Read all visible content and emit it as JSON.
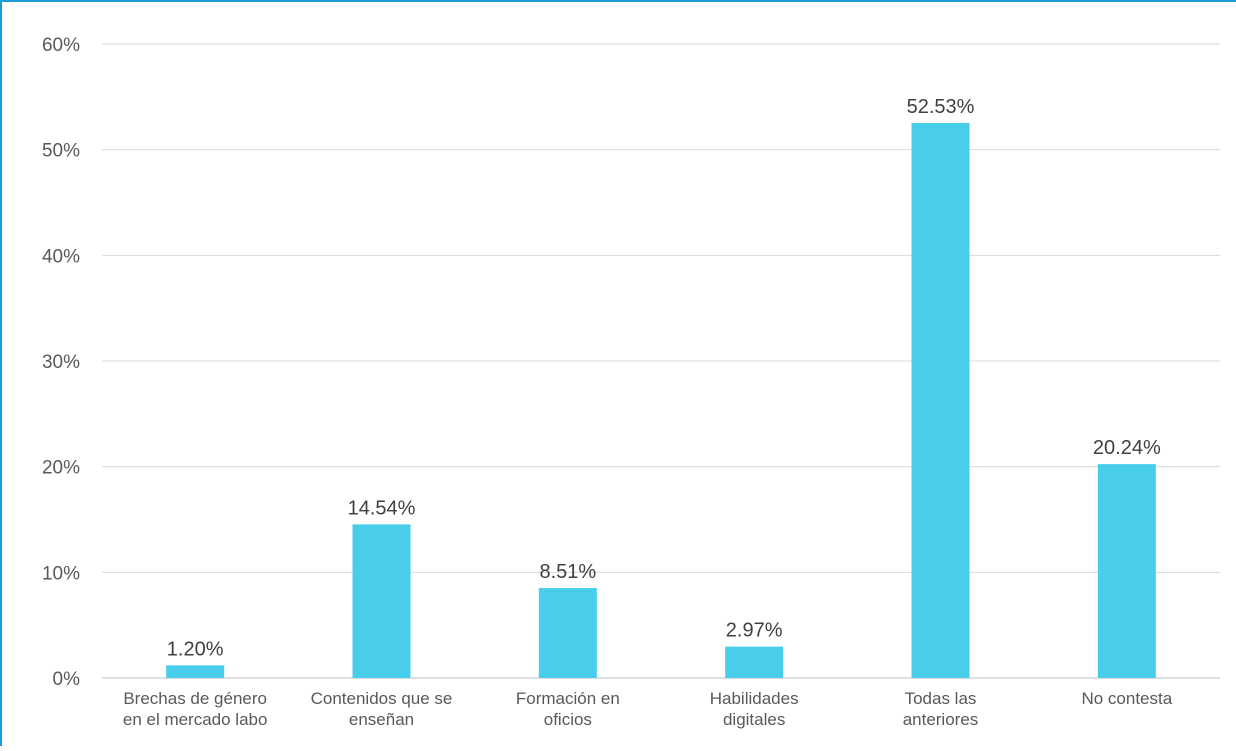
{
  "chart_data": {
    "type": "bar",
    "title": "",
    "xlabel": "",
    "ylabel": "",
    "categories": [
      [
        "Brechas de género",
        "en el mercado labo"
      ],
      [
        "Contenidos que se",
        "enseñan"
      ],
      [
        "Formación en",
        "oficios"
      ],
      [
        "Habilidades",
        "digitales"
      ],
      [
        "Todas las",
        "anteriores"
      ],
      [
        "No contesta"
      ]
    ],
    "values": [
      1.2,
      14.54,
      8.51,
      2.97,
      52.53,
      20.24
    ],
    "data_labels": [
      "1.20%",
      "14.54%",
      "8.51%",
      "2.97%",
      "52.53%",
      "20.24%"
    ],
    "ylim": [
      0,
      60
    ],
    "yticks": [
      0,
      10,
      20,
      30,
      40,
      50,
      60
    ],
    "ytick_labels": [
      "0%",
      "10%",
      "20%",
      "30%",
      "40%",
      "50%",
      "60%"
    ],
    "grid": true,
    "legend": "none",
    "colors": {
      "bar": "#48CDEB",
      "grid": "#D9D9D9",
      "axis": "#BFBFBF",
      "frame": "#1B9BD7"
    }
  }
}
